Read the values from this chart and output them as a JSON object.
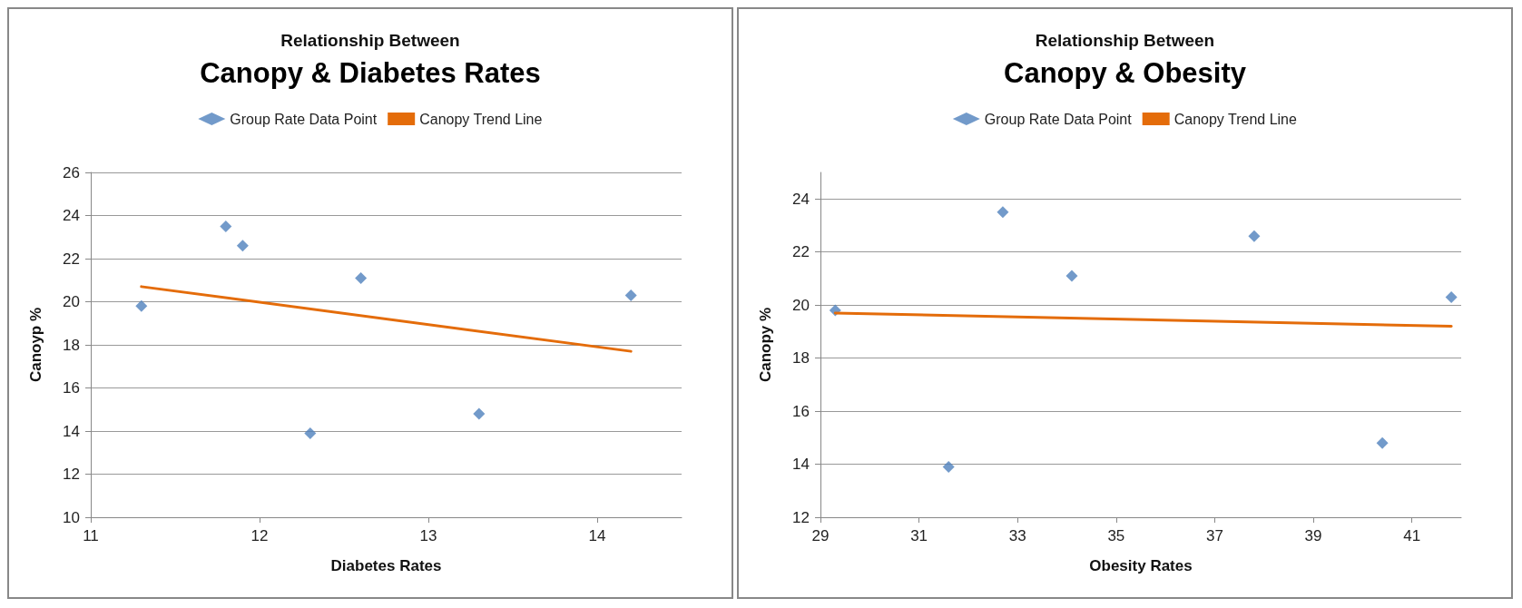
{
  "chart_data": [
    {
      "type": "scatter",
      "subtitle": "Relationship Between",
      "title": "Canopy & Diabetes Rates",
      "xlabel": "Diabetes Rates",
      "ylabel": "Canoyp %",
      "xlim": [
        11,
        14.5
      ],
      "xticks": [
        11,
        12,
        13,
        14
      ],
      "ylim": [
        10,
        26
      ],
      "yticks": [
        10,
        12,
        14,
        16,
        18,
        20,
        22,
        24,
        26
      ],
      "grid": "y",
      "legend": "top",
      "marker": "diamond",
      "series": [
        {
          "name": "Group Rate Data Point",
          "color": "#4f81bd",
          "x": [
            11.3,
            11.8,
            11.9,
            12.3,
            12.6,
            13.3,
            14.2
          ],
          "values": [
            19.8,
            23.5,
            22.6,
            13.9,
            21.1,
            14.8,
            20.3
          ]
        },
        {
          "name": "Canopy Trend Line",
          "type": "line",
          "color": "#e46c0a",
          "marker": "none",
          "line_style": "solid",
          "x": [
            11.3,
            14.2
          ],
          "values": [
            20.7,
            17.7
          ]
        }
      ]
    },
    {
      "type": "scatter",
      "subtitle": "Relationship Between",
      "title": "Canopy & Obesity",
      "xlabel": "Obesity Rates",
      "ylabel": "Canopy %",
      "xlim": [
        29,
        42
      ],
      "xticks": [
        29,
        31,
        33,
        35,
        37,
        39,
        41
      ],
      "ylim": [
        12,
        25
      ],
      "yticks": [
        12,
        14,
        16,
        18,
        20,
        22,
        24
      ],
      "grid": "y",
      "legend": "top",
      "marker": "diamond",
      "series": [
        {
          "name": "Group Rate Data Point",
          "color": "#4f81bd",
          "x": [
            29.3,
            31.6,
            32.7,
            34.1,
            37.8,
            40.4,
            41.8
          ],
          "values": [
            19.8,
            13.9,
            23.5,
            21.1,
            22.6,
            14.8,
            20.3
          ]
        },
        {
          "name": "Canopy Trend Line",
          "type": "line",
          "color": "#e46c0a",
          "marker": "none",
          "line_style": "solid",
          "x": [
            29.3,
            41.8
          ],
          "values": [
            19.7,
            19.2
          ]
        }
      ]
    }
  ]
}
